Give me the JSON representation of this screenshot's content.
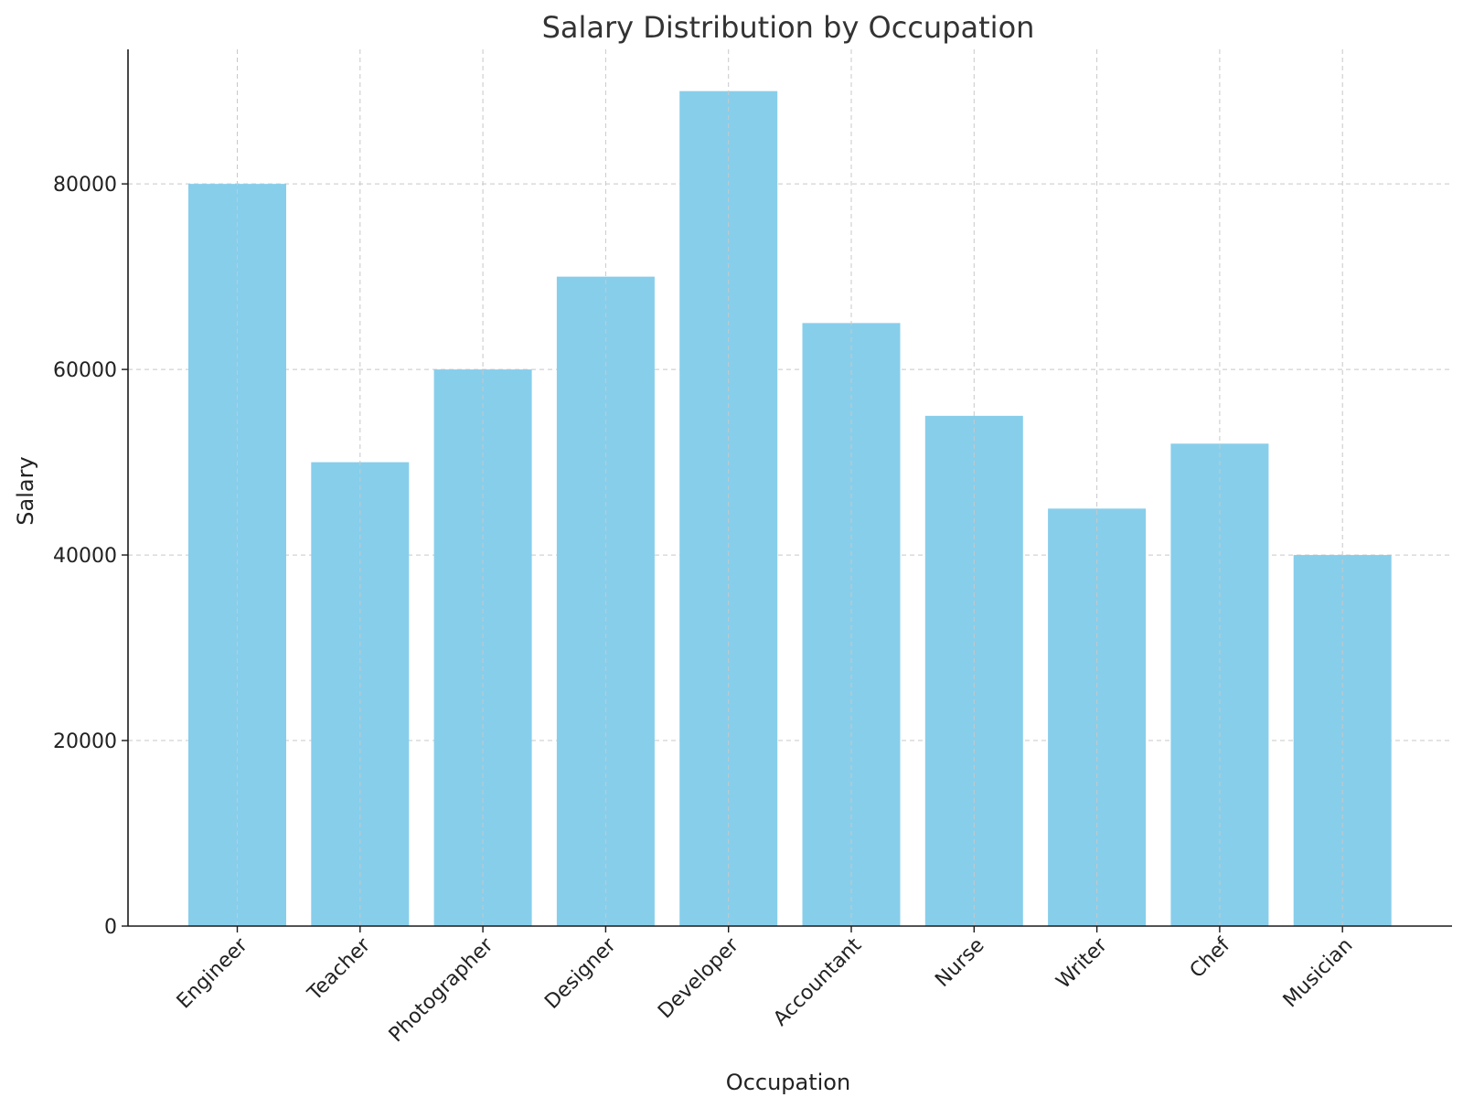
{
  "chart_data": {
    "type": "bar",
    "title": "Salary Distribution by Occupation",
    "xlabel": "Occupation",
    "ylabel": "Salary",
    "categories": [
      "Engineer",
      "Teacher",
      "Photographer",
      "Designer",
      "Developer",
      "Accountant",
      "Nurse",
      "Writer",
      "Chef",
      "Musician"
    ],
    "values": [
      80000,
      50000,
      60000,
      70000,
      90000,
      65000,
      55000,
      45000,
      52000,
      40000
    ],
    "yticks": [
      0,
      20000,
      40000,
      60000,
      80000
    ],
    "ylim": [
      0,
      94500
    ],
    "grid": true,
    "bar_color": "#87CEEB",
    "x_tick_rotation": -45
  }
}
